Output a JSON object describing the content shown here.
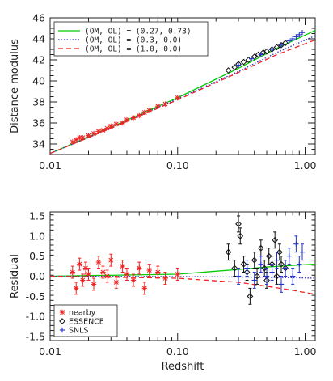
{
  "chart_data": [
    {
      "type": "scatter",
      "xlabel": "",
      "ylabel": "Distance modulus",
      "x_scale": "log",
      "xlim": [
        0.01,
        1.2
      ],
      "ylim": [
        33,
        46
      ],
      "x_ticks": [
        0.01,
        0.1,
        1.0
      ],
      "x_tick_labels": [
        "0.01",
        "0.10",
        "1.00"
      ],
      "y_ticks": [
        34,
        36,
        38,
        40,
        42,
        44,
        46
      ],
      "y_tick_labels": [
        "34",
        "36",
        "38",
        "40",
        "42",
        "44",
        "46"
      ],
      "grid": false,
      "legend_position": "top-left",
      "legend": [
        {
          "label": "(OM, OL) = (0.27, 0.73)",
          "color": "#00cc00",
          "style": "solid"
        },
        {
          "label": "(OM, OL) = (0.3, 0.0)",
          "color": "#3333cc",
          "style": "dotted"
        },
        {
          "label": "(OM, OL) = (1.0, 0.0)",
          "color": "#ee2222",
          "style": "dashed"
        }
      ],
      "models": [
        {
          "color": "#00cc00",
          "style": "solid",
          "x": [
            0.01,
            0.03,
            0.1,
            0.3,
            0.6,
            1.2
          ],
          "y": [
            33.1,
            35.6,
            38.4,
            41.2,
            43.1,
            44.8
          ]
        },
        {
          "color": "#3333cc",
          "style": "dotted",
          "x": [
            0.01,
            0.03,
            0.1,
            0.3,
            0.6,
            1.2
          ],
          "y": [
            33.1,
            35.5,
            38.3,
            40.9,
            42.7,
            44.3
          ]
        },
        {
          "color": "#ee2222",
          "style": "dashed",
          "x": [
            0.01,
            0.03,
            0.1,
            0.3,
            0.6,
            1.2
          ],
          "y": [
            33.1,
            35.5,
            38.2,
            40.8,
            42.5,
            43.9
          ]
        }
      ],
      "series": [
        {
          "marker": "asterisk",
          "color": "#ee2222",
          "x": [
            0.015,
            0.016,
            0.017,
            0.018,
            0.02,
            0.022,
            0.024,
            0.026,
            0.028,
            0.03,
            0.033,
            0.037,
            0.04,
            0.045,
            0.05,
            0.055,
            0.06,
            0.07,
            0.08,
            0.1
          ],
          "y": [
            34.2,
            34.4,
            34.6,
            34.6,
            34.8,
            35.0,
            35.2,
            35.3,
            35.5,
            35.7,
            35.9,
            36.0,
            36.3,
            36.5,
            36.7,
            37.0,
            37.2,
            37.6,
            37.8,
            38.4
          ]
        },
        {
          "marker": "diamond",
          "color": "#111111",
          "x": [
            0.25,
            0.28,
            0.3,
            0.33,
            0.36,
            0.4,
            0.43,
            0.47,
            0.5,
            0.55,
            0.6,
            0.65,
            0.7
          ],
          "y": [
            41.0,
            41.3,
            41.6,
            41.8,
            42.0,
            42.3,
            42.5,
            42.7,
            42.8,
            43.0,
            43.2,
            43.4,
            43.6
          ]
        },
        {
          "marker": "plus",
          "color": "#2233cc",
          "x": [
            0.3,
            0.38,
            0.45,
            0.55,
            0.65,
            0.75,
            0.8,
            0.85,
            0.9,
            0.95
          ],
          "y": [
            41.5,
            42.1,
            42.5,
            43.0,
            43.4,
            43.8,
            44.0,
            44.2,
            44.4,
            44.6
          ]
        }
      ]
    },
    {
      "type": "scatter",
      "xlabel": "Redshift",
      "ylabel": "Residual",
      "x_scale": "log",
      "xlim": [
        0.01,
        1.2
      ],
      "ylim": [
        -1.6,
        1.6
      ],
      "x_ticks": [
        0.01,
        0.1,
        1.0
      ],
      "x_tick_labels": [
        "0.01",
        "0.10",
        "1.00"
      ],
      "y_ticks": [
        -1.5,
        -1.0,
        -0.5,
        0.0,
        0.5,
        1.0,
        1.5
      ],
      "y_tick_labels": [
        "-1.5",
        "-1.0",
        "-0.5",
        "0.0",
        "0.5",
        "1.0",
        "1.5"
      ],
      "grid": false,
      "legend_position": "bottom-left",
      "legend": [
        {
          "label": "nearby",
          "marker": "asterisk",
          "color": "#ee2222"
        },
        {
          "label": "ESSENCE",
          "marker": "diamond",
          "color": "#111111"
        },
        {
          "label": "SNLS",
          "marker": "plus",
          "color": "#2233cc"
        }
      ],
      "models": [
        {
          "color": "#00cc00",
          "style": "solid",
          "x": [
            0.01,
            0.1,
            0.3,
            0.5,
            0.8,
            1.2
          ],
          "y": [
            0.0,
            0.05,
            0.17,
            0.23,
            0.27,
            0.3
          ]
        },
        {
          "color": "#3333cc",
          "style": "dotted",
          "x": [
            0.01,
            0.1,
            0.3,
            0.6,
            1.2
          ],
          "y": [
            0.0,
            -0.01,
            -0.02,
            -0.03,
            -0.05
          ]
        },
        {
          "color": "#ee2222",
          "style": "dashed",
          "x": [
            0.01,
            0.1,
            0.3,
            0.5,
            0.8,
            1.2
          ],
          "y": [
            0.0,
            -0.05,
            -0.15,
            -0.25,
            -0.35,
            -0.45
          ]
        }
      ],
      "series": [
        {
          "name": "nearby",
          "marker": "asterisk",
          "color": "#ee2222",
          "x": [
            0.015,
            0.016,
            0.017,
            0.018,
            0.019,
            0.02,
            0.022,
            0.024,
            0.026,
            0.028,
            0.03,
            0.033,
            0.037,
            0.04,
            0.045,
            0.05,
            0.055,
            0.06,
            0.07,
            0.08,
            0.1
          ],
          "y": [
            0.1,
            -0.3,
            0.3,
            -0.1,
            0.2,
            0.05,
            -0.2,
            0.35,
            0.1,
            0.0,
            0.4,
            -0.15,
            0.25,
            0.05,
            -0.1,
            0.2,
            -0.3,
            0.15,
            0.1,
            -0.05,
            0.05
          ],
          "err": [
            0.15,
            0.15,
            0.15,
            0.15,
            0.15,
            0.15,
            0.15,
            0.15,
            0.15,
            0.15,
            0.15,
            0.15,
            0.15,
            0.15,
            0.15,
            0.15,
            0.15,
            0.15,
            0.15,
            0.15,
            0.15
          ]
        },
        {
          "name": "ESSENCE",
          "marker": "diamond",
          "color": "#111111",
          "x": [
            0.25,
            0.28,
            0.3,
            0.31,
            0.33,
            0.35,
            0.37,
            0.4,
            0.42,
            0.45,
            0.48,
            0.5,
            0.52,
            0.55,
            0.58,
            0.6,
            0.63,
            0.65,
            0.7
          ],
          "y": [
            0.6,
            0.2,
            1.3,
            1.0,
            0.3,
            0.1,
            -0.5,
            0.4,
            0.0,
            0.7,
            0.2,
            -0.1,
            0.5,
            0.3,
            0.9,
            0.0,
            0.6,
            0.3,
            0.2
          ],
          "err": [
            0.2,
            0.2,
            0.2,
            0.2,
            0.2,
            0.2,
            0.2,
            0.2,
            0.2,
            0.2,
            0.2,
            0.2,
            0.2,
            0.2,
            0.2,
            0.2,
            0.2,
            0.2,
            0.2
          ]
        },
        {
          "name": "SNLS",
          "marker": "plus",
          "color": "#2233cc",
          "x": [
            0.3,
            0.35,
            0.4,
            0.45,
            0.5,
            0.55,
            0.6,
            0.65,
            0.7,
            0.75,
            0.8,
            0.85,
            0.9,
            0.95
          ],
          "y": [
            0.0,
            0.2,
            -0.1,
            0.3,
            0.0,
            0.1,
            0.4,
            -0.2,
            0.2,
            0.5,
            0.0,
            0.8,
            0.3,
            0.6
          ],
          "err": [
            0.2,
            0.2,
            0.2,
            0.2,
            0.2,
            0.2,
            0.2,
            0.2,
            0.2,
            0.2,
            0.2,
            0.2,
            0.2,
            0.2
          ]
        }
      ]
    }
  ]
}
